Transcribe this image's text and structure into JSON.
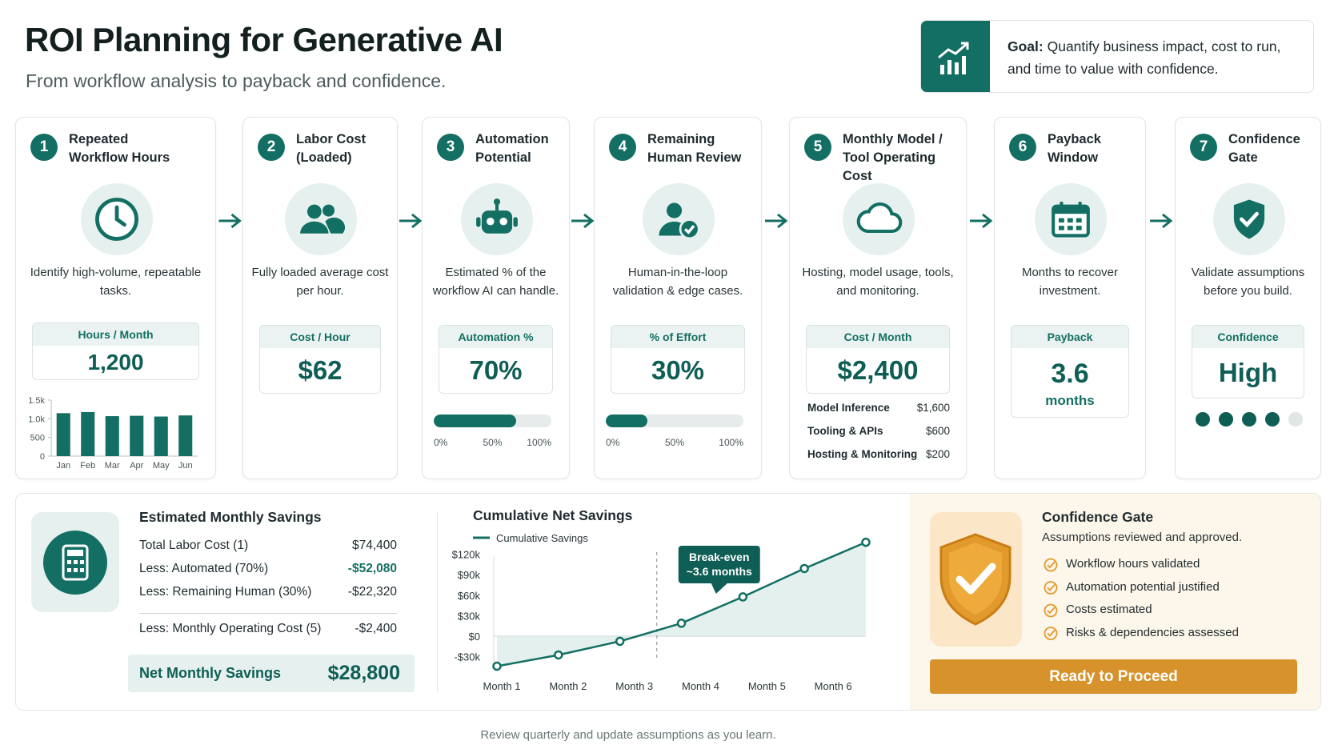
{
  "header": {
    "title": "ROI Planning for Generative AI",
    "subtitle": "From workflow analysis to payback and confidence.",
    "goal_label": "Goal:",
    "goal_text": "Quantify business impact, cost to run, and time to value with confidence."
  },
  "steps": [
    {
      "number": "1",
      "title": "Repeated Workflow Hours",
      "description": "Identify high-volume, repeatable tasks.",
      "metric_label": "Hours / Month",
      "metric_value": "1,200",
      "chart": {
        "type": "bar",
        "categories": [
          "Jan",
          "Feb",
          "Mar",
          "Apr",
          "May",
          "Jun"
        ],
        "values": [
          1150,
          1180,
          1070,
          1080,
          1060,
          1090
        ],
        "color": "#136f63",
        "ylim": [
          0,
          1500
        ],
        "yticks": [
          0,
          500,
          {
            "value": 1000,
            "label": "1.0k"
          },
          {
            "value": 1500,
            "label": "1.5k"
          }
        ]
      }
    },
    {
      "number": "2",
      "title": "Labor Cost (Loaded)",
      "description": "Fully loaded average cost per hour.",
      "metric_label": "Cost / Hour",
      "metric_value": "$62"
    },
    {
      "number": "3",
      "title": "Automation Potential",
      "description": "Estimated % of the workflow AI can handle.",
      "metric_label": "Automation %",
      "metric_value": "70%",
      "progress": {
        "value": 70,
        "xlim": [
          0,
          100
        ],
        "xticks": [
          {
            "value": 0,
            "label": "0%"
          },
          {
            "value": 50,
            "label": "50%"
          },
          {
            "value": 100,
            "label": "100%"
          }
        ]
      }
    },
    {
      "number": "4",
      "title": "Remaining Human Review",
      "description": "Human-in-the-loop validation & edge cases.",
      "metric_label": "% of Effort",
      "metric_value": "30%",
      "progress": {
        "value": 30,
        "xlim": [
          0,
          100
        ],
        "xticks": [
          {
            "value": 0,
            "label": "0%"
          },
          {
            "value": 50,
            "label": "50%"
          },
          {
            "value": 100,
            "label": "100%"
          }
        ]
      }
    },
    {
      "number": "5",
      "title": "Monthly Model / Tool Operating Cost",
      "description": "Hosting, model usage, tools, and monitoring.",
      "metric_label": "Cost / Month",
      "metric_value": "$2,400",
      "breakdown": [
        {
          "label": "Model Inference",
          "value": "$1,600"
        },
        {
          "label": "Tooling & APIs",
          "value": "$600"
        },
        {
          "label": "Hosting & Monitoring",
          "value": "$200"
        }
      ]
    },
    {
      "number": "6",
      "title": "Payback Window",
      "description": "Months to recover investment.",
      "metric_label": "Payback",
      "metric_value": "3.6",
      "metric_unit": "months"
    },
    {
      "number": "7",
      "title": "Confidence Gate",
      "description": "Validate assumptions before you build.",
      "metric_label": "Confidence",
      "metric_value": "High",
      "confidence_dots": {
        "filled": 4,
        "total": 5
      }
    }
  ],
  "savings": {
    "title": "Estimated Monthly Savings",
    "rows": [
      {
        "label": "Total Labor Cost (1)",
        "value": "$74,400"
      },
      {
        "label": "Less: Automated (70%)",
        "value": "-$52,080",
        "highlight": true
      },
      {
        "label": "Less: Remaining Human (30%)",
        "value": "-$22,320"
      },
      {
        "label": "Less: Monthly Operating Cost (5)",
        "value": "-$2,400"
      }
    ],
    "net_label": "Net Monthly Savings",
    "net_value": "$28,800"
  },
  "cumulative": {
    "type": "line",
    "title": "Cumulative Net Savings",
    "categories": [
      "Month 1",
      "Month 2",
      "Month 3",
      "Month 4",
      "Month 5",
      "Month 6",
      null
    ],
    "series": [
      {
        "name": "Cumulative Savings",
        "color": "#136f63",
        "values": [
          -44000,
          -27500,
          -7500,
          19000,
          57500,
          99000,
          137500
        ]
      }
    ],
    "ylim": [
      -45000,
      140000
    ],
    "yticks": [
      {
        "value": -30000,
        "label": "-$30k"
      },
      {
        "value": 0,
        "label": "$0"
      },
      {
        "value": 30000,
        "label": "$30k"
      },
      {
        "value": 60000,
        "label": "$60k"
      },
      {
        "value": 90000,
        "label": "$90k"
      },
      {
        "value": 120000,
        "label": "$120k"
      }
    ],
    "annotation": {
      "lines": [
        "Break-even",
        "~3.6 months"
      ],
      "x": 3.6
    }
  },
  "confidence": {
    "title": "Confidence Gate",
    "subtitle": "Assumptions reviewed and approved.",
    "items": [
      "Workflow hours validated",
      "Automation potential justified",
      "Costs estimated",
      "Risks & dependencies assessed"
    ],
    "button": "Ready to Proceed"
  },
  "footer": "Review quarterly and update assumptions as you learn."
}
